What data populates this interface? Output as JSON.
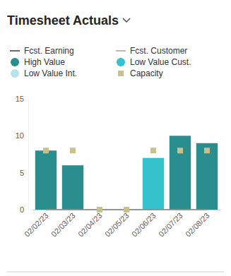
{
  "chart_data": {
    "type": "bar",
    "title": "Timesheet Actuals",
    "categories": [
      "02/02/23",
      "02/03/23",
      "02/04/23",
      "02/05/23",
      "02/06/23",
      "02/07/23",
      "02/08/23"
    ],
    "series": [
      {
        "name": "Fcst. Earning",
        "type": "line",
        "color": "#3b3b3b",
        "line_style": "solid",
        "values": [
          0,
          0,
          0,
          0,
          0,
          0,
          0
        ]
      },
      {
        "name": "Fcst. Customer",
        "type": "line",
        "color": "#a6a6a6",
        "line_style": "solid",
        "values": [
          0,
          0,
          0,
          0,
          0,
          0,
          0
        ]
      },
      {
        "name": "High Value",
        "type": "bar",
        "color": "#2a8e8f",
        "values": [
          8,
          6,
          0,
          0,
          0,
          10,
          9
        ]
      },
      {
        "name": "Low Value Cust.",
        "type": "bar",
        "color": "#34c3cd",
        "values": [
          0,
          0,
          0,
          0,
          7,
          0,
          0
        ]
      },
      {
        "name": "Low Value Int.",
        "type": "bar",
        "color": "#b8e3e8",
        "values": [
          0,
          0,
          0,
          0,
          0,
          0,
          0
        ]
      },
      {
        "name": "Capacity",
        "type": "scatter",
        "marker": "square",
        "color": "#c9c18c",
        "values": [
          8,
          8,
          0,
          0,
          8,
          8,
          8
        ]
      }
    ],
    "ylim": [
      0,
      15
    ],
    "yticks": [
      0,
      5,
      10,
      15
    ],
    "grid": false,
    "stacked": true,
    "legend": "top-left"
  }
}
